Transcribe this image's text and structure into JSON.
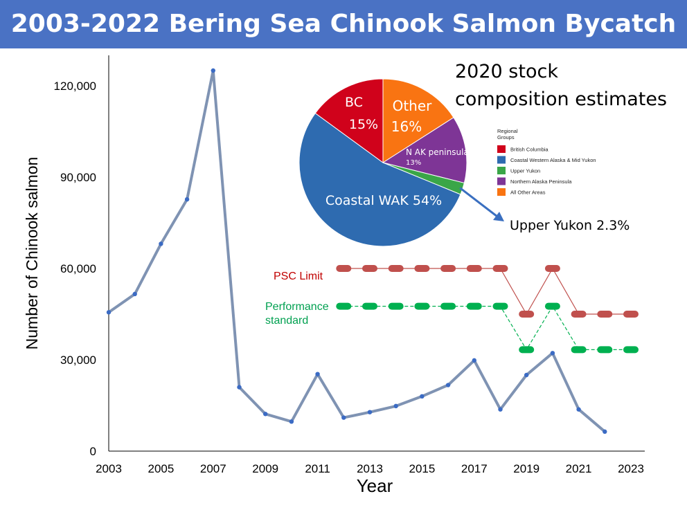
{
  "title": "2003-2022 Bering Sea Chinook Salmon Bycatch",
  "chart_data": [
    {
      "type": "line",
      "xlabel": "Year",
      "ylabel": "Number of Chinook salmon",
      "xlim": [
        2003,
        2023
      ],
      "ylim": [
        0,
        130000
      ],
      "x_ticks": [
        "2003",
        "2005",
        "2007",
        "2009",
        "2011",
        "2013",
        "2015",
        "2017",
        "2019",
        "2021",
        "2023"
      ],
      "y_ticks": [
        "0",
        "30,000",
        "60,000",
        "90,000",
        "120,000"
      ],
      "grid": false,
      "series": [
        {
          "color": "#7f93b3",
          "marker_color": "#3b6bc4",
          "x": [
            2003,
            2004,
            2005,
            2006,
            2007,
            2008,
            2009,
            2010,
            2011,
            2012,
            2013,
            2014,
            2015,
            2016,
            2017,
            2018,
            2019,
            2020,
            2021,
            2022
          ],
          "values": [
            45600,
            51600,
            68100,
            82700,
            125000,
            21000,
            12200,
            9700,
            25300,
            11000,
            12800,
            14800,
            18000,
            21700,
            29800,
            13700,
            25000,
            32200,
            13700,
            6400
          ]
        },
        {
          "name": "PSC Limit",
          "color": "#c0504d",
          "style": "dashed-thick",
          "x": [
            2012,
            2013,
            2014,
            2015,
            2016,
            2017,
            2018,
            2019,
            2020,
            2021,
            2022,
            2023
          ],
          "values": [
            60000,
            60000,
            60000,
            60000,
            60000,
            60000,
            60000,
            45000,
            60000,
            45000,
            45000,
            45000
          ]
        },
        {
          "name": "Performance standard",
          "color": "#00b050",
          "style": "dashed-thick",
          "x": [
            2012,
            2013,
            2014,
            2015,
            2016,
            2017,
            2018,
            2019,
            2020,
            2021,
            2022,
            2023
          ],
          "values": [
            47591,
            47591,
            47591,
            47591,
            47591,
            47591,
            47591,
            33318,
            47591,
            33318,
            33318,
            33318
          ]
        }
      ]
    },
    {
      "type": "pie",
      "title": "2020 stock composition estimates",
      "slices": [
        {
          "label": "Other",
          "value": 16,
          "value_label": "16%",
          "color": "#f97412"
        },
        {
          "label": "N AK peninsula",
          "value": 13,
          "value_label": "13%",
          "color": "#7e3596"
        },
        {
          "label": "Upper Yukon",
          "value": 2.3,
          "value_label": "Upper Yukon 2.3%",
          "color": "#3aa648"
        },
        {
          "label": "Coastal WAK",
          "value": 54,
          "value_label": "Coastal WAK 54%",
          "color": "#2e6bb0"
        },
        {
          "label": "BC",
          "value": 15,
          "value_label": "15%",
          "color": "#d0021b"
        }
      ],
      "legend_title": "Regional Groups",
      "legend": [
        {
          "label": "British Columbia",
          "color": "#d0021b"
        },
        {
          "label": "Coastal Western Alaska & Mid Yukon",
          "color": "#2e6bb0"
        },
        {
          "label": "Upper Yukon",
          "color": "#3aa648"
        },
        {
          "label": "Northern Alaska Peninsula",
          "color": "#7e3596"
        },
        {
          "label": "All Other Areas",
          "color": "#f97412"
        }
      ]
    }
  ]
}
